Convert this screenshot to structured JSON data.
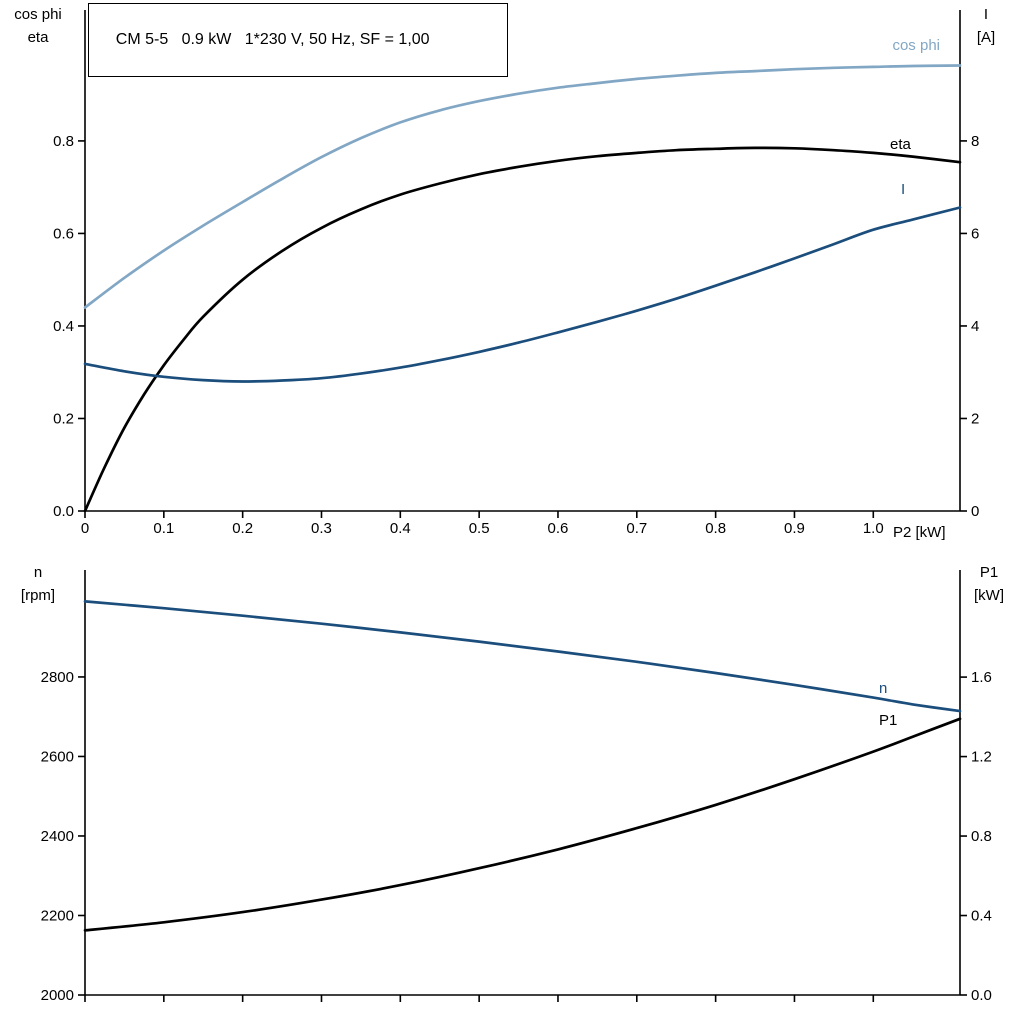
{
  "background": "#ffffff",
  "colors": {
    "light_blue": "#82a7c5",
    "dark_blue": "#1b4e7c",
    "black": "#000000",
    "axis": "#000000"
  },
  "chart_data": [
    {
      "id": "motor-performance",
      "type": "line",
      "title": "CM 5-5   0.9 kW   1*230 V, 50 Hz, SF = 1,00",
      "grid": false,
      "legend_position": "curve-end-labels",
      "x_axis": {
        "label": "P2 [kW]",
        "min": 0,
        "max": 1.11,
        "show_tick_labels": true,
        "ticks": [
          "0",
          "0.1",
          "0.2",
          "0.3",
          "0.4",
          "0.5",
          "0.6",
          "0.7",
          "0.8",
          "0.9",
          "1.0"
        ]
      },
      "left_axis": {
        "label": "cos phi\neta",
        "min": 0,
        "max": 1.083,
        "ticks": [
          "0.0",
          "0.2",
          "0.4",
          "0.6",
          "0.8"
        ]
      },
      "right_axis": {
        "label": "I\n[A]",
        "min": 0,
        "max": 10.83,
        "ticks": [
          "0",
          "2",
          "4",
          "6",
          "8"
        ]
      },
      "series": [
        {
          "name": "cos phi",
          "axis": "left",
          "color": "#82a7c5",
          "points": [
            [
              0,
              0.44
            ],
            [
              0.05,
              0.504
            ],
            [
              0.1,
              0.563
            ],
            [
              0.15,
              0.617
            ],
            [
              0.2,
              0.668
            ],
            [
              0.25,
              0.718
            ],
            [
              0.3,
              0.765
            ],
            [
              0.35,
              0.806
            ],
            [
              0.4,
              0.84
            ],
            [
              0.45,
              0.866
            ],
            [
              0.5,
              0.886
            ],
            [
              0.55,
              0.902
            ],
            [
              0.6,
              0.915
            ],
            [
              0.65,
              0.925
            ],
            [
              0.7,
              0.934
            ],
            [
              0.75,
              0.941
            ],
            [
              0.8,
              0.947
            ],
            [
              0.85,
              0.951
            ],
            [
              0.9,
              0.955
            ],
            [
              0.95,
              0.958
            ],
            [
              1.0,
              0.96
            ],
            [
              1.05,
              0.962
            ],
            [
              1.11,
              0.963
            ]
          ]
        },
        {
          "name": "eta",
          "axis": "left",
          "color": "#000000",
          "points": [
            [
              0,
              0
            ],
            [
              0.025,
              0.095
            ],
            [
              0.05,
              0.18
            ],
            [
              0.075,
              0.252
            ],
            [
              0.1,
              0.315
            ],
            [
              0.125,
              0.37
            ],
            [
              0.15,
              0.42
            ],
            [
              0.2,
              0.5
            ],
            [
              0.25,
              0.562
            ],
            [
              0.3,
              0.612
            ],
            [
              0.35,
              0.652
            ],
            [
              0.4,
              0.684
            ],
            [
              0.45,
              0.708
            ],
            [
              0.5,
              0.728
            ],
            [
              0.55,
              0.744
            ],
            [
              0.6,
              0.757
            ],
            [
              0.65,
              0.767
            ],
            [
              0.7,
              0.774
            ],
            [
              0.75,
              0.78
            ],
            [
              0.8,
              0.783
            ],
            [
              0.85,
              0.785
            ],
            [
              0.9,
              0.784
            ],
            [
              0.95,
              0.78
            ],
            [
              1.0,
              0.774
            ],
            [
              1.05,
              0.766
            ],
            [
              1.11,
              0.754
            ]
          ]
        },
        {
          "name": "I",
          "axis": "right",
          "color": "#1b4e7c",
          "points": [
            [
              0,
              3.18
            ],
            [
              0.05,
              3.02
            ],
            [
              0.1,
              2.9
            ],
            [
              0.15,
              2.83
            ],
            [
              0.2,
              2.8
            ],
            [
              0.25,
              2.82
            ],
            [
              0.3,
              2.87
            ],
            [
              0.35,
              2.97
            ],
            [
              0.4,
              3.1
            ],
            [
              0.45,
              3.26
            ],
            [
              0.5,
              3.44
            ],
            [
              0.55,
              3.64
            ],
            [
              0.6,
              3.86
            ],
            [
              0.65,
              4.09
            ],
            [
              0.7,
              4.33
            ],
            [
              0.75,
              4.59
            ],
            [
              0.8,
              4.87
            ],
            [
              0.85,
              5.16
            ],
            [
              0.9,
              5.46
            ],
            [
              0.95,
              5.77
            ],
            [
              1.0,
              6.08
            ],
            [
              1.05,
              6.3
            ],
            [
              1.11,
              6.56
            ]
          ]
        }
      ]
    },
    {
      "id": "speed-input-power",
      "type": "line",
      "title": "",
      "grid": false,
      "legend_position": "curve-end-labels",
      "x_axis": {
        "label": "",
        "min": 0,
        "max": 1.11,
        "show_tick_labels": false,
        "ticks": [
          "0",
          "0.1",
          "0.2",
          "0.3",
          "0.4",
          "0.5",
          "0.6",
          "0.7",
          "0.8",
          "0.9",
          "1.0"
        ]
      },
      "left_axis": {
        "label": "n\n[rpm]",
        "min": 2000,
        "max": 3069,
        "ticks": [
          "2000",
          "2200",
          "2400",
          "2600",
          "2800"
        ]
      },
      "right_axis": {
        "label": "P1\n[kW]",
        "min": 0,
        "max": 2.139,
        "ticks": [
          "0.0",
          "0.4",
          "0.8",
          "1.2",
          "1.6"
        ]
      },
      "series": [
        {
          "name": "n",
          "axis": "left",
          "color": "#1b4e7c",
          "points": [
            [
              0,
              2990
            ],
            [
              0.1,
              2973
            ],
            [
              0.2,
              2954
            ],
            [
              0.3,
              2934
            ],
            [
              0.4,
              2912
            ],
            [
              0.5,
              2889
            ],
            [
              0.6,
              2864
            ],
            [
              0.7,
              2838
            ],
            [
              0.8,
              2810
            ],
            [
              0.9,
              2780
            ],
            [
              1.0,
              2748
            ],
            [
              1.05,
              2731
            ],
            [
              1.11,
              2714
            ]
          ]
        },
        {
          "name": "P1",
          "axis": "right",
          "color": "#000000",
          "points": [
            [
              0,
              0.325
            ],
            [
              0.1,
              0.366
            ],
            [
              0.2,
              0.417
            ],
            [
              0.3,
              0.48
            ],
            [
              0.4,
              0.553
            ],
            [
              0.5,
              0.638
            ],
            [
              0.6,
              0.733
            ],
            [
              0.7,
              0.84
            ],
            [
              0.8,
              0.957
            ],
            [
              0.9,
              1.086
            ],
            [
              1.0,
              1.225
            ],
            [
              1.05,
              1.3
            ],
            [
              1.11,
              1.39
            ]
          ]
        }
      ]
    }
  ]
}
